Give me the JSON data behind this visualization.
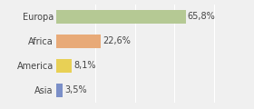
{
  "categories": [
    "Europa",
    "Africa",
    "America",
    "Asia"
  ],
  "values": [
    65.8,
    22.6,
    8.1,
    3.5
  ],
  "labels": [
    "65,8%",
    "22,6%",
    "8,1%",
    "3,5%"
  ],
  "bar_colors": [
    "#b5c994",
    "#e8aa78",
    "#e8d055",
    "#7b8fc8"
  ],
  "background_color": "#f0f0f0",
  "xlim": [
    0,
    85
  ],
  "bar_height": 0.55,
  "label_fontsize": 7,
  "tick_fontsize": 7
}
